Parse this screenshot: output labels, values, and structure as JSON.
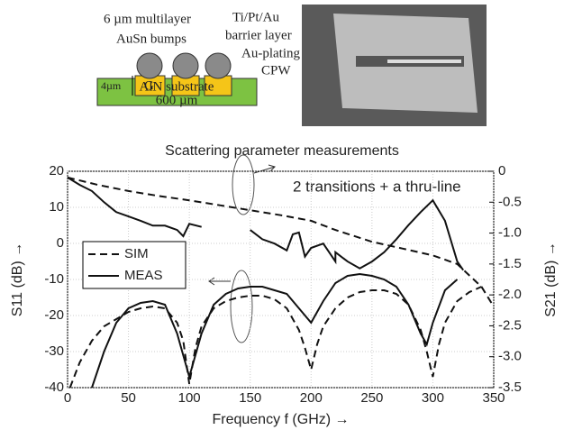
{
  "diagram": {
    "bump_label": [
      "6 µm multilayer",
      "AuSn bumps"
    ],
    "barrier_label": [
      "Ti/Pt/Au",
      "barrier layer"
    ],
    "cpw_label": [
      "Au-plating",
      "CPW"
    ],
    "height_label": "4µm",
    "pad_label": "G",
    "substrate_label": [
      "AlN substrate",
      "600 µm"
    ]
  },
  "chart_data": {
    "type": "line",
    "title": "Scattering parameter measurements",
    "xlabel": "Frequency f (GHz) →",
    "ylabel": "S11 (dB) →",
    "y2label": "S21 (dB) →",
    "annotation": "2 transitions + a thru-line",
    "xlim": [
      0,
      350
    ],
    "xticks": [
      0,
      50,
      100,
      150,
      200,
      250,
      300,
      350
    ],
    "ylim": [
      -40,
      20
    ],
    "yticks": [
      -40,
      -30,
      -20,
      -10,
      0,
      10,
      20
    ],
    "y2lim": [
      -3.5,
      0
    ],
    "y2ticks": [
      0,
      -0.5,
      {
        "value": -1,
        "label": "-1.0"
      },
      -1.5,
      {
        "value": -2,
        "label": "-2.0"
      },
      -2.5,
      {
        "value": -3,
        "label": "-3.0"
      },
      -3.5
    ],
    "legend": "upper left",
    "series": [
      {
        "name": "SIM",
        "color": "#111111",
        "dash": "dashed",
        "axis": "y",
        "x": [
          2,
          10,
          20,
          30,
          40,
          50,
          60,
          70,
          80,
          90,
          95,
          100,
          105,
          110,
          120,
          130,
          140,
          150,
          160,
          170,
          180,
          190,
          195,
          200,
          205,
          210,
          220,
          230,
          240,
          250,
          260,
          270,
          280,
          290,
          295,
          300,
          305,
          310,
          320,
          330,
          340
        ],
        "values": [
          -40,
          -33,
          -27,
          -23,
          -21,
          -19,
          -18,
          -17.5,
          -18,
          -22,
          -27,
          -39,
          -29,
          -23,
          -18,
          -16,
          -15,
          -14.5,
          -14.5,
          -15.5,
          -18,
          -24,
          -29,
          -35,
          -28,
          -23,
          -18,
          -15,
          -13.5,
          -13,
          -13,
          -14,
          -17,
          -24,
          -30,
          -37,
          -28,
          -22,
          -16,
          -13.5,
          -12
        ]
      },
      {
        "name": "MEAS",
        "color": "#111111",
        "dash": "solid",
        "axis": "y",
        "x": [
          20,
          30,
          40,
          50,
          60,
          70,
          80,
          90,
          100,
          110,
          120,
          130,
          140,
          150,
          160,
          170,
          180,
          190,
          200,
          210,
          220,
          230,
          240,
          250,
          260,
          270,
          280,
          290,
          295,
          300,
          310,
          320
        ],
        "values": [
          -40,
          -30,
          -22,
          -18,
          -16.5,
          -16,
          -17,
          -25,
          -37,
          -25,
          -17,
          -14,
          -12.5,
          -12,
          -12,
          -13,
          -14,
          -18,
          -22,
          -16,
          -11,
          -9,
          -8.5,
          -9,
          -10,
          -12,
          -17,
          -25,
          -28,
          -22,
          -13,
          -10
        ]
      },
      {
        "name": "SIM",
        "color": "#111111",
        "dash": "dashed",
        "axis": "y2",
        "x": [
          0,
          25,
          50,
          75,
          100,
          125,
          150,
          175,
          200,
          220,
          250,
          275,
          300,
          320,
          340,
          350
        ],
        "values": [
          -0.1,
          -0.22,
          -0.32,
          -0.4,
          -0.47,
          -0.55,
          -0.63,
          -0.71,
          -0.8,
          -0.95,
          -1.14,
          -1.25,
          -1.36,
          -1.5,
          -1.87,
          -2.19
        ]
      },
      {
        "name": "MEAS",
        "color": "#111111",
        "dash": "solid",
        "axis": "y2",
        "x": [
          0,
          10,
          20,
          30,
          40,
          50,
          60,
          70,
          80,
          90,
          95,
          100,
          110,
          130,
          150,
          160,
          170,
          180,
          185,
          190,
          195,
          200,
          210,
          220,
          220,
          230,
          240,
          250,
          260,
          270,
          280,
          290,
          300,
          310,
          320,
          325
        ],
        "values": [
          -0.1,
          -0.22,
          -0.32,
          -0.5,
          -0.66,
          -0.73,
          -0.8,
          -0.88,
          -0.88,
          -0.95,
          -1.05,
          -0.85,
          -0.9,
          null,
          -0.95,
          -1.1,
          -1.17,
          -1.28,
          -1.02,
          -0.99,
          -1.38,
          -1.24,
          -1.17,
          -1.46,
          -1.31,
          -1.46,
          -1.57,
          -1.46,
          -1.31,
          -1.1,
          -0.87,
          -0.66,
          -0.47,
          -0.8,
          -1.46,
          -1.6
        ]
      }
    ]
  }
}
